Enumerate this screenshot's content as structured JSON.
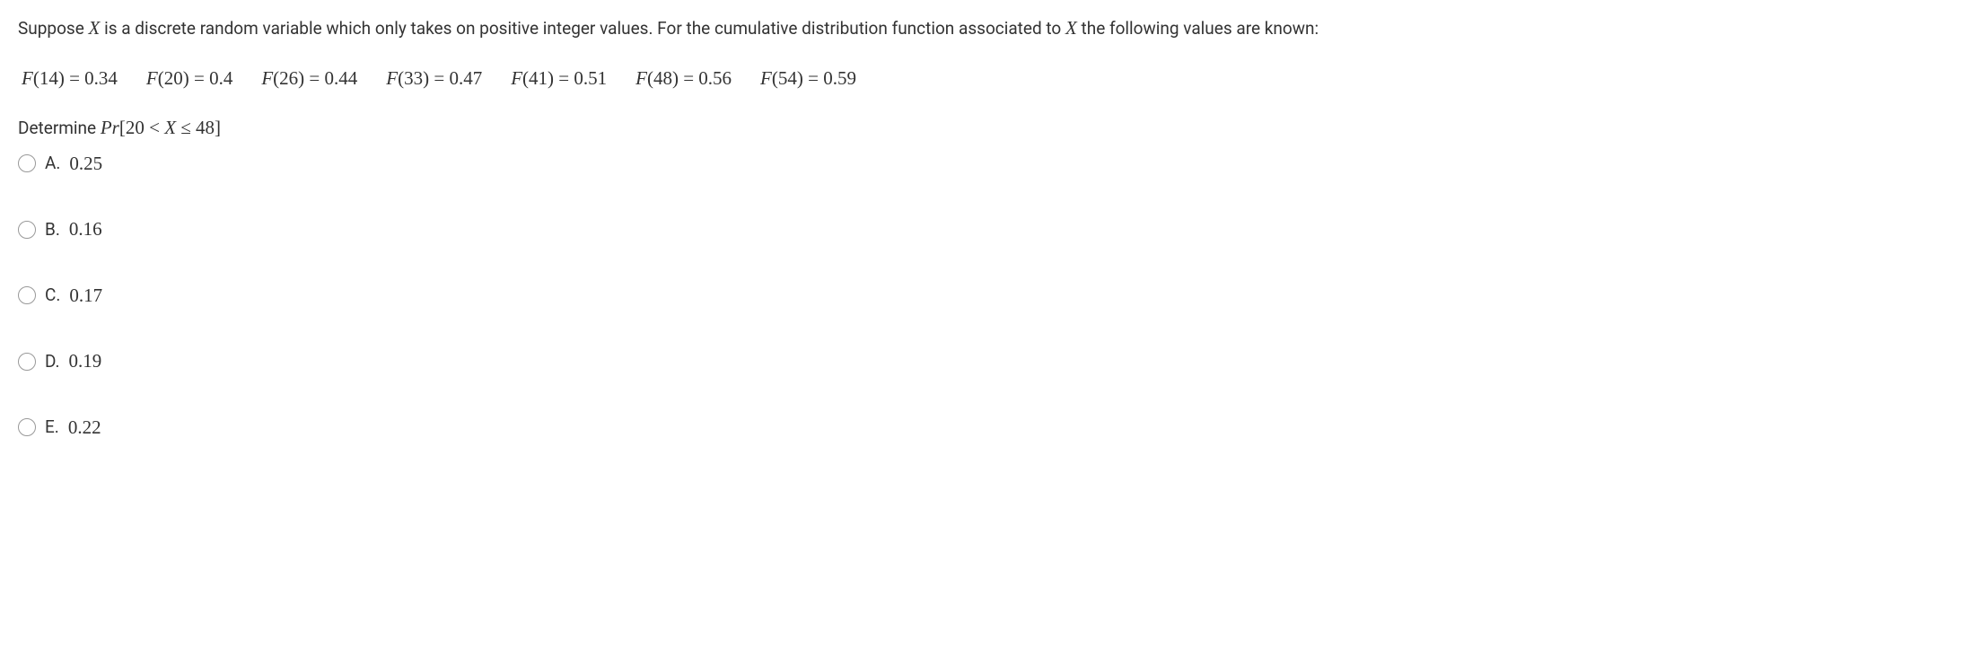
{
  "intro": {
    "part1": "Suppose ",
    "var1": "X",
    "part2": " is a discrete random variable which only takes on positive integer values. For the cumulative distribution function associated to ",
    "var2": "X",
    "part3": " the following values are known:"
  },
  "cdf_values": [
    {
      "func": "F",
      "arg": "14",
      "eq": " = ",
      "val": "0.34"
    },
    {
      "func": "F",
      "arg": "20",
      "eq": " = ",
      "val": "0.4"
    },
    {
      "func": "F",
      "arg": "26",
      "eq": " = ",
      "val": "0.44"
    },
    {
      "func": "F",
      "arg": "33",
      "eq": " = ",
      "val": "0.47"
    },
    {
      "func": "F",
      "arg": "41",
      "eq": " = ",
      "val": "0.51"
    },
    {
      "func": "F",
      "arg": "48",
      "eq": " = ",
      "val": "0.56"
    },
    {
      "func": "F",
      "arg": "54",
      "eq": " = ",
      "val": "0.59"
    }
  ],
  "determine": {
    "label": "Determine ",
    "pr": "Pr",
    "open": "[20 < ",
    "var": "X",
    "close": " ≤ 48]"
  },
  "options": [
    {
      "letter": "A.",
      "value": "0.25"
    },
    {
      "letter": "B.",
      "value": "0.16"
    },
    {
      "letter": "C.",
      "value": "0.17"
    },
    {
      "letter": "D.",
      "value": "0.19"
    },
    {
      "letter": "E.",
      "value": "0.22"
    }
  ],
  "styling": {
    "body_font_size": 19,
    "math_font_size": 21,
    "text_color": "#333333",
    "background_color": "#ffffff",
    "radio_border_color": "#999999",
    "option_gap": 42
  }
}
